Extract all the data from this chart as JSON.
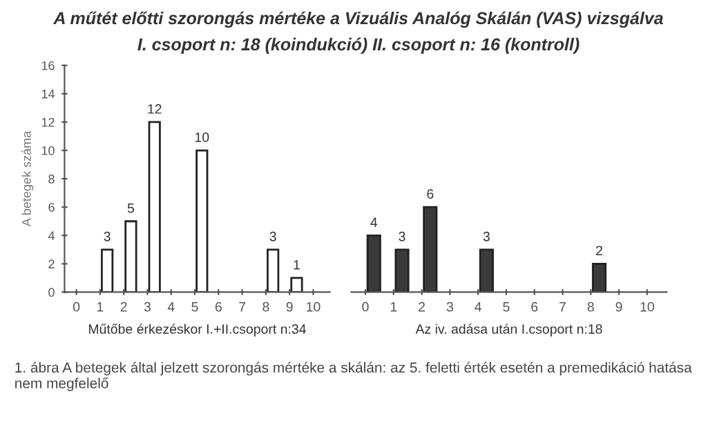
{
  "chart_data": [
    {
      "type": "bar",
      "title": "A műtét előtti szorongás mértéke a Vizuális Analóg Skálán (VAS) vizsgálva",
      "subtitle": "I. csoport n: 18 (koindukció) II. csoport n: 16 (kontroll)",
      "xlabel": "Műtőbe érkezéskor I.+II.csoport n:34",
      "ylabel": "A betegek száma",
      "categories": [
        "0",
        "1",
        "2",
        "3",
        "4",
        "5",
        "6",
        "7",
        "8",
        "9",
        "10"
      ],
      "series": [
        {
          "color": "#ffffff",
          "values": [
            null,
            3,
            5,
            12,
            null,
            10,
            null,
            null,
            3,
            1,
            null
          ]
        }
      ],
      "ylim": [
        0,
        16
      ],
      "yticks": [
        0,
        2,
        4,
        6,
        8,
        10,
        12,
        14,
        16
      ],
      "data_labels": true,
      "annotations": [
        "1. ábra A betegek által jelzett szorongás mértéke a skálán: az 5. feletti érték esetén a premedikáció hatása nem megfelelő"
      ]
    },
    {
      "type": "bar",
      "xlabel": "Az iv. adása után I.csoport n:18",
      "categories": [
        "0",
        "1",
        "2",
        "3",
        "4",
        "5",
        "6",
        "7",
        "8",
        "9",
        "10"
      ],
      "series": [
        {
          "color": "#3a3a3a",
          "values": [
            4,
            3,
            6,
            null,
            3,
            null,
            null,
            null,
            2,
            null,
            null
          ]
        }
      ],
      "ylim": [
        0,
        16
      ],
      "tick_labels": "x",
      "data_labels": true
    }
  ]
}
